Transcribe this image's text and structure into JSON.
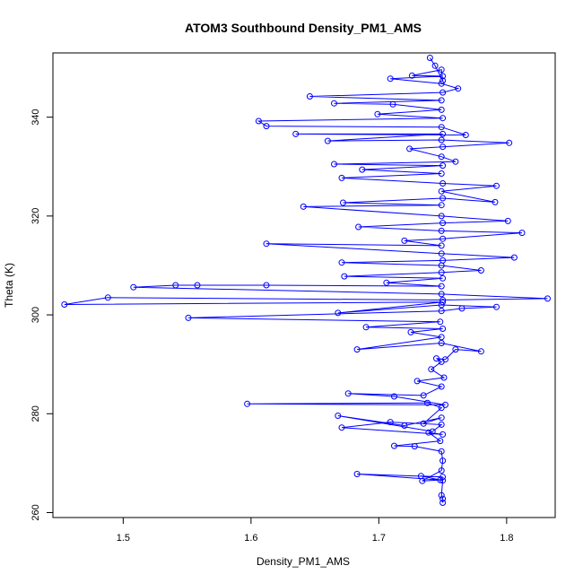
{
  "chart_data": {
    "type": "line",
    "title": "ATOM3 Southbound Density_PM1_AMS",
    "xlabel": "Density_PM1_AMS",
    "ylabel": "Theta (K)",
    "xlim": [
      1.445,
      1.838
    ],
    "ylim": [
      259,
      353
    ],
    "xticks": [
      1.5,
      1.6,
      1.7,
      1.8
    ],
    "xtick_labels": [
      "1.5",
      "1.6",
      "1.7",
      "1.8"
    ],
    "yticks": [
      260,
      280,
      300,
      320,
      340
    ],
    "ytick_labels": [
      "260",
      "280",
      "300",
      "320",
      "340"
    ],
    "grid": false,
    "legend": "none",
    "series_color": "#0000ff",
    "marker": "open-circle",
    "series": [
      {
        "points": [
          [
            1.75,
            262
          ],
          [
            1.75,
            262.8
          ],
          [
            1.749,
            263.5
          ],
          [
            1.75,
            266.5
          ],
          [
            1.733,
            267.4
          ],
          [
            1.75,
            267.2
          ],
          [
            1.683,
            267.8
          ],
          [
            1.748,
            266.6
          ],
          [
            1.734,
            266.4
          ],
          [
            1.749,
            268.5
          ],
          [
            1.75,
            270.5
          ],
          [
            1.749,
            272.4
          ],
          [
            1.728,
            273.4
          ],
          [
            1.712,
            273.5
          ],
          [
            1.748,
            274.5
          ],
          [
            1.739,
            276.2
          ],
          [
            1.75,
            275.8
          ],
          [
            1.671,
            277.2
          ],
          [
            1.709,
            278.3
          ],
          [
            1.749,
            277.8
          ],
          [
            1.742,
            276.4
          ],
          [
            1.668,
            279.6
          ],
          [
            1.72,
            277.6
          ],
          [
            1.749,
            279.2
          ],
          [
            1.735,
            278.0
          ],
          [
            1.749,
            281.2
          ],
          [
            1.738,
            282.2
          ],
          [
            1.597,
            282.0
          ],
          [
            1.752,
            281.8
          ],
          [
            1.712,
            283.5
          ],
          [
            1.676,
            284.1
          ],
          [
            1.735,
            283.7
          ],
          [
            1.749,
            285.5
          ],
          [
            1.73,
            286.6
          ],
          [
            1.751,
            287.3
          ],
          [
            1.741,
            289.0
          ],
          [
            1.749,
            290.5
          ],
          [
            1.745,
            291.2
          ],
          [
            1.752,
            291.0
          ],
          [
            1.76,
            293.0
          ],
          [
            1.78,
            292.6
          ],
          [
            1.749,
            294.3
          ],
          [
            1.683,
            293.0
          ],
          [
            1.749,
            295.5
          ],
          [
            1.725,
            296.5
          ],
          [
            1.75,
            297.2
          ],
          [
            1.69,
            297.5
          ],
          [
            1.748,
            298.6
          ],
          [
            1.551,
            299.4
          ],
          [
            1.749,
            300.8
          ],
          [
            1.765,
            301.3
          ],
          [
            1.792,
            301.6
          ],
          [
            1.749,
            302.0
          ],
          [
            1.668,
            300.4
          ],
          [
            1.75,
            302.6
          ],
          [
            1.454,
            302.1
          ],
          [
            1.488,
            303.5
          ],
          [
            1.75,
            303.0
          ],
          [
            1.832,
            303.3
          ],
          [
            1.749,
            304.2
          ],
          [
            1.508,
            305.6
          ],
          [
            1.541,
            306.0
          ],
          [
            1.558,
            306.0
          ],
          [
            1.612,
            306.0
          ],
          [
            1.749,
            305.8
          ],
          [
            1.706,
            306.5
          ],
          [
            1.75,
            307.4
          ],
          [
            1.673,
            307.8
          ],
          [
            1.749,
            308.6
          ],
          [
            1.78,
            309.0
          ],
          [
            1.749,
            310.0
          ],
          [
            1.671,
            310.6
          ],
          [
            1.75,
            311.0
          ],
          [
            1.806,
            311.6
          ],
          [
            1.749,
            312.4
          ],
          [
            1.612,
            314.4
          ],
          [
            1.749,
            314.0
          ],
          [
            1.72,
            315.0
          ],
          [
            1.75,
            315.4
          ],
          [
            1.812,
            316.6
          ],
          [
            1.749,
            317.0
          ],
          [
            1.684,
            317.8
          ],
          [
            1.75,
            318.6
          ],
          [
            1.801,
            319.0
          ],
          [
            1.749,
            320.0
          ],
          [
            1.641,
            321.9
          ],
          [
            1.749,
            322.2
          ],
          [
            1.672,
            322.7
          ],
          [
            1.75,
            323.6
          ],
          [
            1.791,
            322.8
          ],
          [
            1.749,
            325.0
          ],
          [
            1.792,
            326.1
          ],
          [
            1.75,
            326.6
          ],
          [
            1.671,
            327.7
          ],
          [
            1.749,
            328.6
          ],
          [
            1.687,
            329.4
          ],
          [
            1.75,
            330.2
          ],
          [
            1.665,
            330.5
          ],
          [
            1.76,
            331.0
          ],
          [
            1.749,
            332.0
          ],
          [
            1.724,
            333.6
          ],
          [
            1.75,
            334.0
          ],
          [
            1.802,
            334.8
          ],
          [
            1.749,
            335.4
          ],
          [
            1.66,
            335.2
          ],
          [
            1.75,
            336.6
          ],
          [
            1.635,
            336.6
          ],
          [
            1.768,
            336.4
          ],
          [
            1.749,
            338.0
          ],
          [
            1.612,
            338.2
          ],
          [
            1.606,
            339.2
          ],
          [
            1.75,
            339.8
          ],
          [
            1.699,
            340.6
          ],
          [
            1.749,
            341.5
          ],
          [
            1.711,
            342.6
          ],
          [
            1.665,
            342.8
          ],
          [
            1.749,
            343.4
          ],
          [
            1.646,
            344.2
          ],
          [
            1.75,
            345.0
          ],
          [
            1.762,
            345.8
          ],
          [
            1.749,
            346.8
          ],
          [
            1.709,
            347.8
          ],
          [
            1.75,
            348.3
          ],
          [
            1.726,
            348.4
          ],
          [
            1.749,
            349.6
          ],
          [
            1.75,
            347.4
          ],
          [
            1.744,
            350.4
          ],
          [
            1.74,
            352.0
          ]
        ]
      }
    ]
  }
}
